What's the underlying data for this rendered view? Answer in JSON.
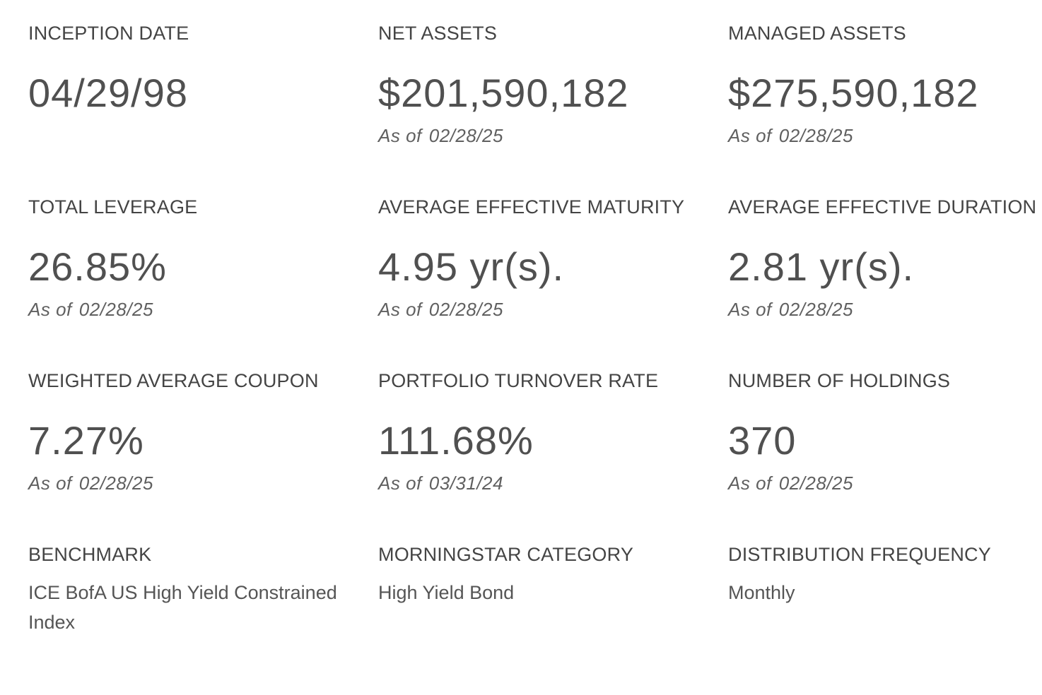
{
  "stats": [
    {
      "label": "INCEPTION DATE",
      "value": "04/29/98",
      "asof_prefix": "",
      "asof_date": ""
    },
    {
      "label": "NET ASSETS",
      "value": "$201,590,182",
      "asof_prefix": "As of",
      "asof_date": "02/28/25"
    },
    {
      "label": "MANAGED ASSETS",
      "value": "$275,590,182",
      "asof_prefix": "As of",
      "asof_date": "02/28/25"
    },
    {
      "label": "TOTAL LEVERAGE",
      "value": "26.85%",
      "asof_prefix": "As of",
      "asof_date": "02/28/25"
    },
    {
      "label": "AVERAGE EFFECTIVE MATURITY",
      "value": "4.95 yr(s).",
      "asof_prefix": "As of",
      "asof_date": "02/28/25"
    },
    {
      "label": "AVERAGE EFFECTIVE DURATION",
      "value": "2.81 yr(s).",
      "asof_prefix": "As of",
      "asof_date": "02/28/25"
    },
    {
      "label": "WEIGHTED AVERAGE COUPON",
      "value": "7.27%",
      "asof_prefix": "As of",
      "asof_date": "02/28/25"
    },
    {
      "label": "PORTFOLIO TURNOVER RATE",
      "value": "111.68%",
      "asof_prefix": "As of",
      "asof_date": "03/31/24"
    },
    {
      "label": "NUMBER OF HOLDINGS",
      "value": "370",
      "asof_prefix": "As of",
      "asof_date": "02/28/25"
    }
  ],
  "details": [
    {
      "label": "BENCHMARK",
      "value": "ICE BofA US High Yield Constrained Index"
    },
    {
      "label": "MORNINGSTAR CATEGORY",
      "value": "High Yield Bond"
    },
    {
      "label": "DISTRIBUTION FREQUENCY",
      "value": "Monthly"
    }
  ]
}
